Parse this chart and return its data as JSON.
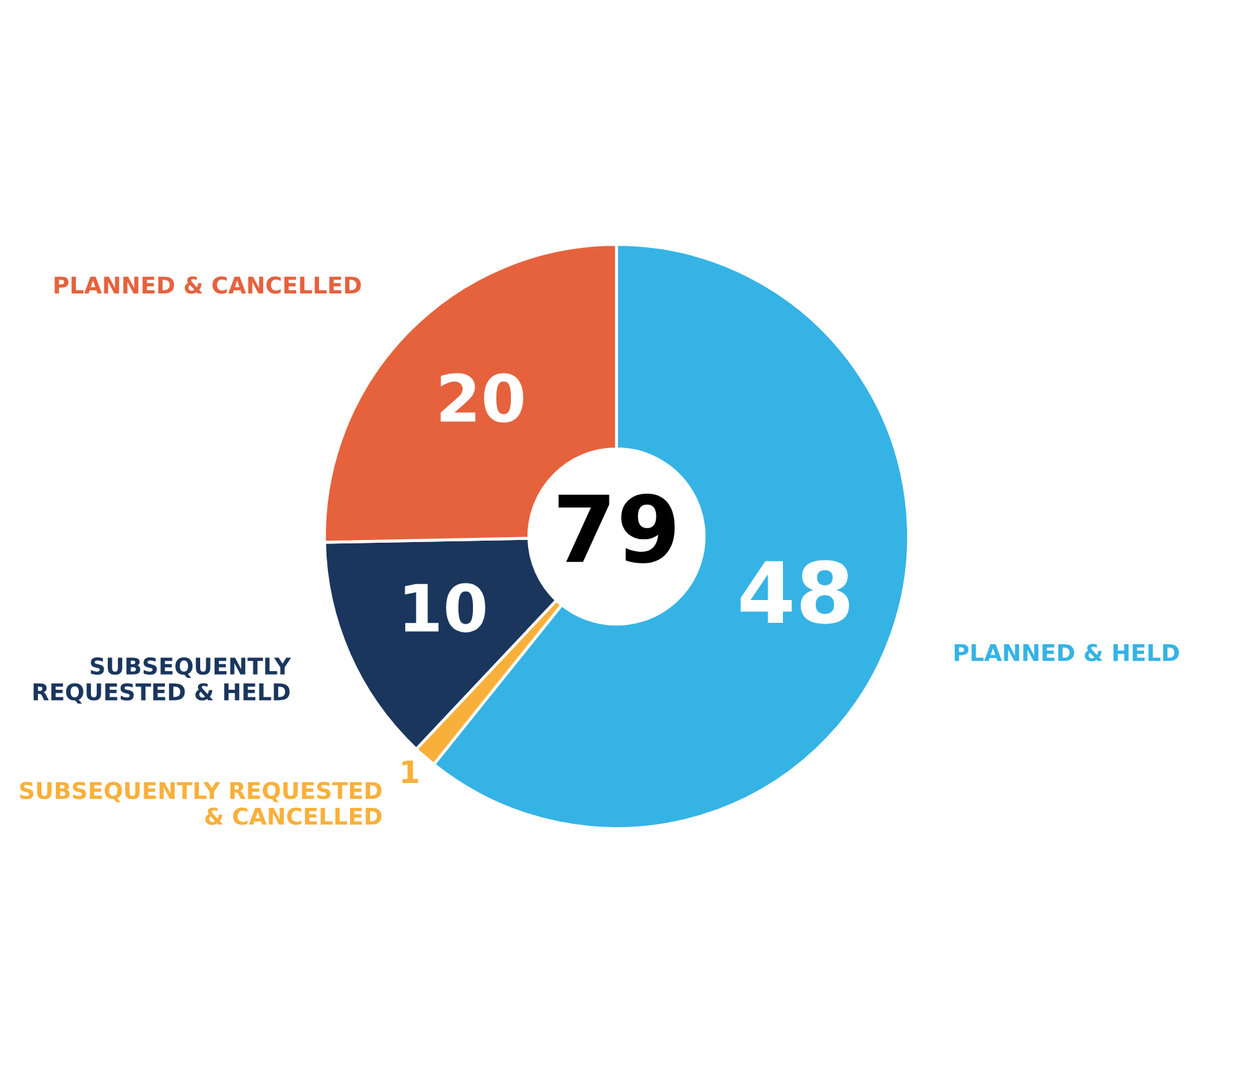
{
  "chart_data": {
    "type": "donut",
    "categories": [
      "PLANNED & HELD",
      "SUBSEQUENTLY REQUESTED & CANCELLED",
      "SUBSEQUENTLY REQUESTED & HELD",
      "PLANNED & CANCELLED"
    ],
    "values": [
      48,
      1,
      10,
      20
    ],
    "colors": [
      "#35b3e5",
      "#f9b03b",
      "#1a365d",
      "#e5623d"
    ],
    "data_labels": true,
    "legend": false,
    "annotations": [
      "79"
    ]
  }
}
